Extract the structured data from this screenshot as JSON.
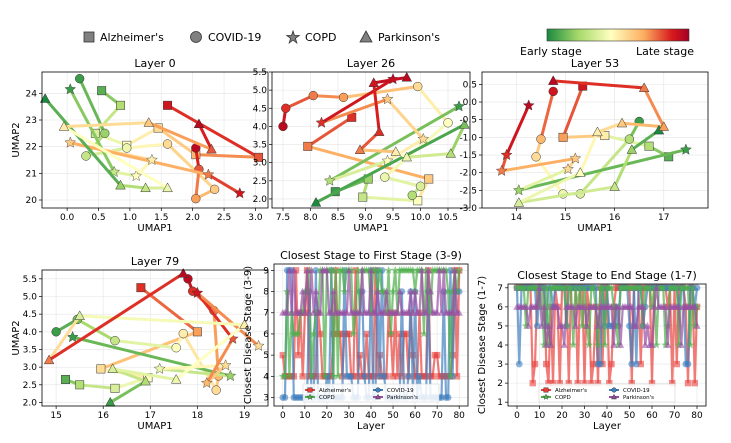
{
  "legend": {
    "items": [
      {
        "label": "Alzheimer's",
        "marker": "square"
      },
      {
        "label": "COVID-19",
        "marker": "circle"
      },
      {
        "label": "COPD",
        "marker": "star"
      },
      {
        "label": "Parkinson's",
        "marker": "triangle"
      }
    ]
  },
  "colorbar": {
    "low_label": "Early stage",
    "high_label": "Late stage",
    "colors": [
      "#1a8a3f",
      "#a6d96a",
      "#ffffbf",
      "#fdae61",
      "#d7191c",
      "#a50026"
    ]
  },
  "chart_data": [
    {
      "type": "scatter",
      "title": "Layer 0",
      "xlabel": "UMAP1",
      "ylabel": "UMAP2",
      "xlim": [
        -0.4,
        3.2
      ],
      "ylim": [
        19.7,
        24.8
      ],
      "xticks": [
        0.0,
        0.5,
        1.0,
        1.5,
        2.0,
        2.5,
        3.0
      ],
      "yticks": [
        20,
        21,
        22,
        23,
        24
      ],
      "series": [
        {
          "disease": "Alzheimer's",
          "points": [
            [
              0.55,
              24.1,
              0.1
            ],
            [
              0.85,
              23.55,
              0.25
            ],
            [
              0.45,
              22.5,
              0.35
            ],
            [
              0.95,
              22.05,
              0.45
            ],
            [
              1.45,
              22.7,
              0.55
            ],
            [
              2.05,
              21.7,
              0.65
            ],
            [
              3.05,
              21.6,
              0.8
            ],
            [
              1.6,
              23.55,
              0.9
            ]
          ]
        },
        {
          "disease": "COVID-19",
          "points": [
            [
              0.2,
              24.55,
              0.05
            ],
            [
              0.6,
              22.5,
              0.2
            ],
            [
              0.3,
              21.65,
              0.3
            ],
            [
              0.95,
              21.95,
              0.4
            ],
            [
              1.6,
              22.1,
              0.55
            ],
            [
              2.35,
              20.4,
              0.6
            ],
            [
              2.05,
              20.05,
              0.7
            ],
            [
              2.1,
              21.15,
              0.8
            ],
            [
              2.05,
              21.95,
              0.95
            ]
          ]
        },
        {
          "disease": "COPD",
          "points": [
            [
              0.05,
              24.15,
              0.05
            ],
            [
              0.75,
              21.05,
              0.3
            ],
            [
              1.1,
              20.9,
              0.45
            ],
            [
              1.35,
              21.5,
              0.5
            ],
            [
              0.05,
              22.15,
              0.6
            ],
            [
              2.25,
              20.95,
              0.75
            ],
            [
              2.75,
              20.25,
              0.9
            ]
          ]
        },
        {
          "disease": "Parkinson's",
          "points": [
            [
              -0.35,
              23.8,
              0.0
            ],
            [
              0.85,
              20.55,
              0.2
            ],
            [
              1.25,
              20.45,
              0.3
            ],
            [
              1.6,
              20.45,
              0.4
            ],
            [
              -0.05,
              22.75,
              0.5
            ],
            [
              1.3,
              22.9,
              0.6
            ],
            [
              2.3,
              21.9,
              0.8
            ],
            [
              2.1,
              22.85,
              0.95
            ]
          ]
        }
      ]
    },
    {
      "type": "scatter",
      "title": "Layer 26",
      "xlabel": "UMAP1",
      "ylabel": "",
      "xlim": [
        7.3,
        10.9
      ],
      "ylim": [
        1.75,
        5.5
      ],
      "xticks": [
        7.5,
        8.0,
        8.5,
        9.0,
        9.5,
        10.0,
        10.5
      ],
      "yticks": [
        2.0,
        2.5,
        3.0,
        3.5,
        4.0,
        4.5,
        5.0,
        5.5
      ],
      "series": [
        {
          "disease": "Alzheimer's",
          "points": [
            [
              8.45,
              2.2,
              0.05
            ],
            [
              9.05,
              2.55,
              0.2
            ],
            [
              8.95,
              2.05,
              0.3
            ],
            [
              9.95,
              1.95,
              0.45
            ],
            [
              10.15,
              2.55,
              0.6
            ],
            [
              7.95,
              3.45,
              0.75
            ],
            [
              8.75,
              4.25,
              0.85
            ]
          ]
        },
        {
          "disease": "COVID-19",
          "points": [
            [
              9.85,
              2.1,
              0.25
            ],
            [
              10.0,
              2.35,
              0.35
            ],
            [
              9.35,
              2.6,
              0.4
            ],
            [
              10.5,
              4.1,
              0.45
            ],
            [
              9.95,
              5.1,
              0.55
            ],
            [
              8.6,
              4.8,
              0.7
            ],
            [
              8.05,
              4.85,
              0.75
            ],
            [
              7.55,
              4.5,
              0.85
            ],
            [
              7.5,
              4.0,
              0.95
            ]
          ]
        },
        {
          "disease": "COPD",
          "points": [
            [
              10.7,
              4.55,
              0.05
            ],
            [
              8.35,
              2.5,
              0.25
            ],
            [
              9.4,
              3.05,
              0.45
            ],
            [
              10.05,
              3.65,
              0.55
            ],
            [
              9.4,
              4.75,
              0.6
            ],
            [
              8.2,
              4.1,
              0.85
            ],
            [
              9.5,
              5.3,
              0.95
            ]
          ]
        },
        {
          "disease": "Parkinson's",
          "points": [
            [
              8.1,
              1.9,
              0.0
            ],
            [
              10.8,
              4.05,
              0.15
            ],
            [
              10.55,
              3.25,
              0.25
            ],
            [
              9.75,
              3.15,
              0.4
            ],
            [
              9.55,
              3.3,
              0.5
            ],
            [
              8.9,
              3.35,
              0.75
            ],
            [
              9.25,
              3.85,
              0.85
            ],
            [
              9.15,
              5.2,
              0.9
            ],
            [
              9.75,
              5.35,
              0.95
            ]
          ]
        }
      ]
    },
    {
      "type": "scatter",
      "title": "Layer 53",
      "xlabel": "UMAP1",
      "ylabel": "",
      "xlim": [
        13.3,
        17.9
      ],
      "ylim": [
        -3.0,
        0.85
      ],
      "xticks": [
        14,
        15,
        16,
        17
      ],
      "yticks": [
        -3.0,
        -2.5,
        -2.0,
        -1.5,
        -1.0,
        -0.5,
        0.0,
        0.5
      ],
      "series": [
        {
          "disease": "Alzheimer's",
          "points": [
            [
              17.1,
              -1.55,
              0.1
            ],
            [
              16.7,
              -1.25,
              0.25
            ],
            [
              15.8,
              -0.95,
              0.5
            ],
            [
              14.95,
              -1.0,
              0.7
            ],
            [
              15.35,
              0.45,
              0.9
            ]
          ]
        },
        {
          "disease": "COVID-19",
          "points": [
            [
              16.5,
              -0.55,
              0.05
            ],
            [
              16.3,
              -1.05,
              0.25
            ],
            [
              15.3,
              -2.6,
              0.35
            ],
            [
              14.95,
              -2.6,
              0.4
            ],
            [
              14.4,
              -1.55,
              0.55
            ],
            [
              14.5,
              -1.05,
              0.65
            ],
            [
              14.75,
              0.3,
              0.9
            ]
          ]
        },
        {
          "disease": "COPD",
          "points": [
            [
              17.45,
              -1.35,
              0.05
            ],
            [
              14.05,
              -2.5,
              0.2
            ],
            [
              15.05,
              -1.9,
              0.55
            ],
            [
              15.2,
              -1.6,
              0.6
            ],
            [
              13.7,
              -1.95,
              0.75
            ],
            [
              13.8,
              -1.5,
              0.85
            ],
            [
              14.25,
              -0.1,
              0.95
            ]
          ]
        },
        {
          "disease": "Parkinson's",
          "points": [
            [
              16.9,
              -0.8,
              0.0
            ],
            [
              16.35,
              -1.35,
              0.2
            ],
            [
              16.0,
              -2.4,
              0.3
            ],
            [
              14.05,
              -2.85,
              0.35
            ],
            [
              15.3,
              -2.0,
              0.45
            ],
            [
              15.65,
              -0.85,
              0.5
            ],
            [
              16.15,
              -0.6,
              0.6
            ],
            [
              17.0,
              -0.7,
              0.7
            ],
            [
              16.6,
              0.4,
              0.75
            ],
            [
              14.75,
              0.6,
              0.95
            ]
          ]
        }
      ]
    },
    {
      "type": "scatter",
      "title": "Layer 79",
      "xlabel": "UMAP1",
      "ylabel": "UMAP2",
      "xlim": [
        14.7,
        19.5
      ],
      "ylim": [
        1.9,
        5.75
      ],
      "xticks": [
        15,
        16,
        17,
        18,
        19
      ],
      "yticks": [
        2.0,
        2.5,
        3.0,
        3.5,
        4.0,
        4.5,
        5.0,
        5.5
      ],
      "series": [
        {
          "disease": "Alzheimer's",
          "points": [
            [
              15.2,
              2.65,
              0.1
            ],
            [
              15.5,
              2.5,
              0.25
            ],
            [
              16.25,
              2.4,
              0.35
            ],
            [
              16.95,
              2.7,
              0.45
            ],
            [
              15.95,
              2.95,
              0.55
            ],
            [
              18.0,
              4.0,
              0.7
            ],
            [
              16.8,
              5.25,
              0.85
            ]
          ]
        },
        {
          "disease": "COVID-19",
          "points": [
            [
              15.0,
              4.0,
              0.05
            ],
            [
              15.45,
              4.35,
              0.15
            ],
            [
              16.25,
              3.75,
              0.3
            ],
            [
              17.55,
              3.55,
              0.45
            ],
            [
              17.7,
              3.95,
              0.5
            ],
            [
              18.4,
              2.35,
              0.55
            ],
            [
              18.45,
              2.75,
              0.65
            ],
            [
              18.35,
              4.6,
              0.75
            ],
            [
              17.9,
              5.15,
              0.85
            ],
            [
              17.8,
              5.5,
              0.95
            ]
          ]
        },
        {
          "disease": "COPD",
          "points": [
            [
              15.35,
              3.85,
              0.05
            ],
            [
              18.7,
              2.75,
              0.2
            ],
            [
              17.2,
              2.95,
              0.4
            ],
            [
              18.6,
              3.05,
              0.55
            ],
            [
              18.2,
              2.55,
              0.65
            ],
            [
              18.75,
              3.8,
              0.8
            ],
            [
              18.0,
              5.1,
              0.9
            ],
            [
              19.3,
              3.6,
              0.55
            ]
          ]
        },
        {
          "disease": "Parkinson's",
          "points": [
            [
              16.15,
              2.0,
              0.05
            ],
            [
              16.9,
              2.6,
              0.25
            ],
            [
              16.2,
              2.95,
              0.35
            ],
            [
              17.55,
              2.65,
              0.4
            ],
            [
              19.0,
              4.2,
              0.5
            ],
            [
              15.5,
              4.45,
              0.35
            ],
            [
              14.85,
              3.2,
              0.75
            ],
            [
              17.7,
              5.65,
              0.95
            ]
          ]
        }
      ]
    },
    {
      "type": "line",
      "title": "Closest Stage to First Stage (3-9)",
      "xlabel": "Layer",
      "ylabel": "Closest Disease Stage (3-9)",
      "xlim": [
        -4,
        84
      ],
      "ylim": [
        2.6,
        9.3
      ],
      "xticks": [
        0,
        10,
        20,
        30,
        40,
        50,
        60,
        70,
        80
      ],
      "yticks": [
        3,
        4,
        5,
        6,
        7,
        8,
        9
      ],
      "legend": [
        "Alzheimer's",
        "COVID-19",
        "COPD",
        "Parkinson's"
      ],
      "series": [
        {
          "name": "Alzheimer's",
          "seed": 11,
          "levels": [
            4,
            9,
            7,
            6,
            5
          ],
          "base": 4
        },
        {
          "name": "COVID-19",
          "seed": 23,
          "levels": [
            3,
            8,
            9,
            4,
            3
          ],
          "base": 3
        },
        {
          "name": "COPD",
          "seed": 37,
          "levels": [
            9,
            6,
            8,
            4,
            7
          ],
          "base": 9
        },
        {
          "name": "Parkinson's",
          "seed": 53,
          "levels": [
            7,
            8,
            9,
            7,
            7
          ],
          "base": 7
        }
      ]
    },
    {
      "type": "line",
      "title": "Closest Stage to End Stage (1-7)",
      "xlabel": "Layer",
      "ylabel": "Closest Disease Stage (1-7)",
      "xlim": [
        -4,
        84
      ],
      "ylim": [
        0.8,
        7.2
      ],
      "xticks": [
        0,
        10,
        20,
        30,
        40,
        50,
        60,
        70,
        80
      ],
      "yticks": [
        1,
        2,
        3,
        4,
        5,
        6,
        7
      ],
      "legend": [
        "Alzheimer's",
        "COVID-19",
        "COPD",
        "Parkinson's"
      ],
      "series": [
        {
          "name": "Alzheimer's",
          "seed": 71,
          "levels": [
            7,
            2,
            6,
            3,
            7
          ],
          "base": 7
        },
        {
          "name": "COVID-19",
          "seed": 83,
          "levels": [
            7,
            6,
            3,
            5,
            7
          ],
          "base": 7
        },
        {
          "name": "COPD",
          "seed": 97,
          "levels": [
            7,
            6,
            5,
            7,
            4
          ],
          "base": 7
        },
        {
          "name": "Parkinson's",
          "seed": 109,
          "levels": [
            6,
            7,
            5,
            4,
            6
          ],
          "base": 6
        }
      ]
    }
  ]
}
